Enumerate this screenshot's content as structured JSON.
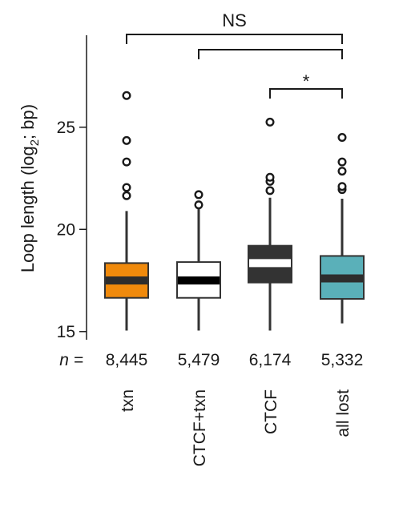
{
  "chart_data": {
    "type": "box",
    "ylabel": "Loop length (log",
    "ylabel_sub": "2",
    "ylabel_tail": "; bp)",
    "ylim": [
      14.6,
      29.5
    ],
    "yticks": [
      15,
      20,
      25
    ],
    "n_prefix": "n =",
    "categories": [
      "txn",
      "CTCF+txn",
      "CTCF",
      "all lost"
    ],
    "counts": [
      "8,445",
      "5,479",
      "6,174",
      "5,332"
    ],
    "boxes": [
      {
        "name": "txn",
        "color": "#f08a0c",
        "median_color": "#2d2d2d",
        "whisker_low": 15.05,
        "q1": 16.65,
        "median": 17.5,
        "q3": 18.35,
        "whisker_high": 20.9,
        "outliers": [
          21.65,
          22.05,
          23.3,
          24.35,
          26.55
        ]
      },
      {
        "name": "CTCF+txn",
        "color": "#ffffff",
        "median_color": "#000000",
        "whisker_low": 15.05,
        "q1": 16.65,
        "median": 17.5,
        "q3": 18.4,
        "whisker_high": 21.05,
        "outliers": [
          21.2,
          21.7
        ]
      },
      {
        "name": "CTCF",
        "color": "#333333",
        "median_color": "#ffffff",
        "whisker_low": 15.05,
        "q1": 17.4,
        "median": 18.35,
        "q3": 19.2,
        "whisker_high": 21.55,
        "outliers": [
          21.9,
          22.35,
          22.55,
          25.25
        ]
      },
      {
        "name": "all lost",
        "color": "#5ab0b9",
        "median_color": "#2d2d2d",
        "whisker_low": 15.4,
        "q1": 16.6,
        "median": 17.6,
        "q3": 18.7,
        "whisker_high": 21.5,
        "outliers": [
          21.95,
          22.1,
          22.85,
          23.3,
          24.5
        ]
      }
    ],
    "significance": [
      {
        "from": "txn",
        "to": "all lost",
        "label": "NS"
      },
      {
        "from": "CTCF+txn",
        "to": "all lost",
        "label": ""
      },
      {
        "from": "CTCF",
        "to": "all lost",
        "label": "*"
      }
    ]
  }
}
